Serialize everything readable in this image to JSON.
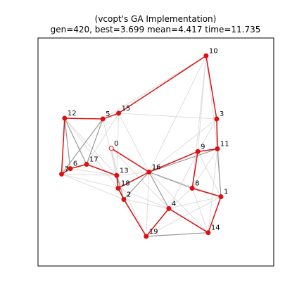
{
  "chart_data": {
    "type": "scatter",
    "title": "(vcopt's GA Implementation)",
    "subtitle": "gen=420, best=3.699 mean=4.417 time=11.735",
    "xlim": [
      0,
      1
    ],
    "ylim": [
      0,
      1
    ],
    "axis_ticks": "none",
    "grid": false,
    "legend": "none",
    "colors": {
      "route": "#dd1111",
      "node": "#dd1111",
      "start_node_fill": "#ffffff",
      "candidate_edge_light": "#dddddd",
      "candidate_edge_dark": "#999999"
    },
    "start_node": "0",
    "nodes": [
      {
        "id": "0",
        "x": 0.311,
        "y": 0.516
      },
      {
        "id": "1",
        "x": 0.776,
        "y": 0.304
      },
      {
        "id": "2",
        "x": 0.364,
        "y": 0.292
      },
      {
        "id": "3",
        "x": 0.758,
        "y": 0.645
      },
      {
        "id": "4",
        "x": 0.555,
        "y": 0.252
      },
      {
        "id": "5",
        "x": 0.275,
        "y": 0.645
      },
      {
        "id": "6",
        "x": 0.137,
        "y": 0.427
      },
      {
        "id": "7",
        "x": 0.1,
        "y": 0.403
      },
      {
        "id": "8",
        "x": 0.654,
        "y": 0.341
      },
      {
        "id": "9",
        "x": 0.678,
        "y": 0.502
      },
      {
        "id": "10",
        "x": 0.713,
        "y": 0.922
      },
      {
        "id": "11",
        "x": 0.761,
        "y": 0.514
      },
      {
        "id": "12",
        "x": 0.113,
        "y": 0.648
      },
      {
        "id": "13",
        "x": 0.334,
        "y": 0.397
      },
      {
        "id": "14",
        "x": 0.722,
        "y": 0.146
      },
      {
        "id": "15",
        "x": 0.342,
        "y": 0.67
      },
      {
        "id": "16",
        "x": 0.471,
        "y": 0.412
      },
      {
        "id": "17",
        "x": 0.206,
        "y": 0.446
      },
      {
        "id": "18",
        "x": 0.34,
        "y": 0.341
      },
      {
        "id": "19",
        "x": 0.459,
        "y": 0.13
      }
    ],
    "route": [
      "0",
      "16",
      "9",
      "8",
      "1",
      "14",
      "4",
      "19",
      "2",
      "18",
      "13",
      "17",
      "6",
      "7",
      "12",
      "5",
      "15",
      "10",
      "3",
      "11",
      "9",
      "16",
      "18"
    ],
    "candidate_edges_dark": [
      [
        "5",
        "7"
      ],
      [
        "12",
        "6"
      ],
      [
        "12",
        "17"
      ],
      [
        "5",
        "17"
      ],
      [
        "11",
        "1"
      ],
      [
        "3",
        "11"
      ],
      [
        "1",
        "8"
      ],
      [
        "16",
        "9"
      ],
      [
        "16",
        "11"
      ],
      [
        "19",
        "14"
      ],
      [
        "4",
        "16"
      ],
      [
        "2",
        "16"
      ],
      [
        "4",
        "14"
      ],
      [
        "8",
        "16"
      ],
      [
        "13",
        "2"
      ],
      [
        "18",
        "2"
      ],
      [
        "13",
        "18"
      ],
      [
        "6",
        "17"
      ]
    ],
    "candidate_edges_light": [
      [
        "10",
        "9"
      ],
      [
        "10",
        "11"
      ],
      [
        "10",
        "16"
      ],
      [
        "10",
        "8"
      ],
      [
        "10",
        "5"
      ],
      [
        "15",
        "3"
      ],
      [
        "15",
        "16"
      ],
      [
        "15",
        "13"
      ],
      [
        "15",
        "17"
      ],
      [
        "5",
        "13"
      ],
      [
        "12",
        "7"
      ],
      [
        "12",
        "13"
      ],
      [
        "12",
        "18"
      ],
      [
        "7",
        "13"
      ],
      [
        "7",
        "18"
      ],
      [
        "7",
        "2"
      ],
      [
        "6",
        "13"
      ],
      [
        "17",
        "13"
      ],
      [
        "0",
        "13"
      ],
      [
        "0",
        "18"
      ],
      [
        "0",
        "2"
      ],
      [
        "0",
        "4"
      ],
      [
        "16",
        "3"
      ],
      [
        "16",
        "1"
      ],
      [
        "16",
        "14"
      ],
      [
        "16",
        "19"
      ],
      [
        "13",
        "16"
      ],
      [
        "9",
        "3"
      ],
      [
        "9",
        "1"
      ],
      [
        "8",
        "14"
      ],
      [
        "8",
        "4"
      ],
      [
        "8",
        "11"
      ],
      [
        "11",
        "14"
      ],
      [
        "1",
        "4"
      ],
      [
        "1",
        "19"
      ],
      [
        "4",
        "2"
      ],
      [
        "4",
        "18"
      ],
      [
        "2",
        "19"
      ],
      [
        "18",
        "19"
      ],
      [
        "13",
        "19"
      ],
      [
        "3",
        "1"
      ],
      [
        "9",
        "4"
      ]
    ]
  }
}
